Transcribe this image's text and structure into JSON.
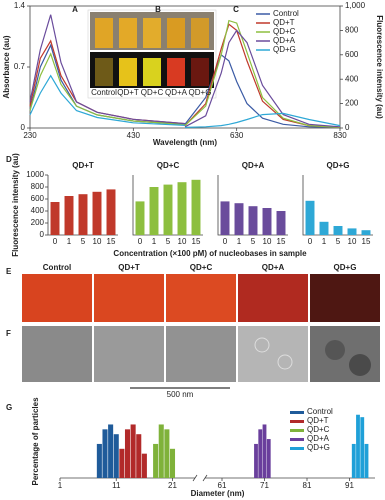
{
  "chart_data": [
    {
      "type": "line",
      "annotations": [
        "A",
        "B",
        "C"
      ],
      "xlabel": "Wavelength (nm)",
      "ylabel": "Absorbance (au)",
      "y2label": "Fluorescence intensity (au)",
      "xlim": [
        230,
        830
      ],
      "xticks": [
        230,
        430,
        630,
        830
      ],
      "ylim": [
        0,
        1.4
      ],
      "yticks": [
        0,
        0.7,
        1.4
      ],
      "y2lim": [
        0,
        1000
      ],
      "y2ticks": [
        0,
        200,
        400,
        600,
        800,
        {
          "value": 1000,
          "label": "1,000"
        }
      ],
      "inset_labels": [
        "Control",
        "QD+T",
        "QD+C",
        "QD+A",
        "QD+G"
      ],
      "series": [
        {
          "name": "Control",
          "color": "#3b5ba5",
          "x": [
            230,
            250,
            270,
            290,
            320,
            360,
            430,
            530
          ],
          "values": [
            0.2,
            0.7,
            0.95,
            0.55,
            0.25,
            0.15,
            0.08,
            0.04
          ]
        },
        {
          "name": "QD+T",
          "color": "#c0392b",
          "x": [
            230,
            250,
            270,
            290,
            320,
            360,
            430,
            530
          ],
          "values": [
            0.25,
            0.8,
            1.0,
            0.6,
            0.3,
            0.18,
            0.1,
            0.05
          ]
        },
        {
          "name": "QD+C",
          "color": "#8dbf3f",
          "x": [
            230,
            250,
            270,
            290,
            320,
            360,
            430,
            530
          ],
          "values": [
            0.2,
            0.6,
            0.85,
            0.5,
            0.25,
            0.15,
            0.08,
            0.04
          ]
        },
        {
          "name": "QD+A",
          "color": "#6a4c9c",
          "x": [
            230,
            250,
            270,
            290,
            320,
            360,
            430,
            530
          ],
          "values": [
            0.3,
            0.9,
            1.3,
            0.75,
            0.3,
            0.18,
            0.1,
            0.05
          ]
        },
        {
          "name": "QD+G",
          "color": "#2ea8d6",
          "x": [
            230,
            250,
            270,
            290,
            320,
            360,
            430,
            530
          ],
          "values": [
            0.15,
            0.4,
            0.6,
            0.4,
            0.2,
            0.12,
            0.06,
            0.03
          ]
        },
        {
          "name": "Control",
          "color": "#3b5ba5",
          "axis": "y2",
          "x": [
            530,
            570,
            600,
            615,
            630,
            650,
            680,
            720,
            770,
            830
          ],
          "values": [
            30,
            250,
            600,
            550,
            380,
            200,
            80,
            30,
            10,
            5
          ]
        },
        {
          "name": "QD+T",
          "color": "#c0392b",
          "axis": "y2",
          "x": [
            530,
            570,
            600,
            615,
            630,
            650,
            680,
            720,
            770,
            830
          ],
          "values": [
            20,
            200,
            650,
            850,
            800,
            550,
            220,
            70,
            20,
            5
          ]
        },
        {
          "name": "QD+C",
          "color": "#8dbf3f",
          "axis": "y2",
          "x": [
            530,
            570,
            600,
            615,
            630,
            650,
            680,
            720,
            770,
            830
          ],
          "values": [
            20,
            180,
            600,
            880,
            860,
            620,
            250,
            80,
            20,
            5
          ]
        },
        {
          "name": "QD+A",
          "color": "#6a4c9c",
          "axis": "y2",
          "x": [
            530,
            570,
            600,
            615,
            630,
            650,
            680,
            720,
            770,
            830
          ],
          "values": [
            10,
            100,
            450,
            700,
            800,
            700,
            350,
            110,
            30,
            10
          ]
        },
        {
          "name": "QD+G",
          "color": "#2ea8d6",
          "axis": "y2",
          "x": [
            530,
            570,
            600,
            615,
            630,
            650,
            680,
            720,
            770,
            830
          ],
          "values": [
            5,
            10,
            20,
            30,
            45,
            70,
            110,
            120,
            70,
            20
          ]
        }
      ]
    },
    {
      "type": "bar",
      "panel": "D",
      "title": "QD+T",
      "ylabel": "Fluorescence intensity (au)",
      "xlabel": "Concentration (×100 pM) of nucleobases in sample",
      "categories": [
        "0",
        "1",
        "5",
        "10",
        "15"
      ],
      "values": [
        550,
        650,
        680,
        720,
        760
      ],
      "color": "#c0392b",
      "ylim": [
        0,
        1000
      ],
      "yticks": [
        0,
        200,
        400,
        600,
        800,
        1000
      ]
    },
    {
      "type": "bar",
      "title": "QD+C",
      "categories": [
        "0",
        "1",
        "5",
        "10",
        "15"
      ],
      "values": [
        560,
        800,
        840,
        880,
        920
      ],
      "color": "#8dbf3f",
      "ylim": [
        0,
        1000
      ]
    },
    {
      "type": "bar",
      "title": "QD+A",
      "categories": [
        "0",
        "1",
        "5",
        "10",
        "15"
      ],
      "values": [
        560,
        530,
        480,
        450,
        400
      ],
      "color": "#6a4c9c",
      "ylim": [
        0,
        1000
      ]
    },
    {
      "type": "bar",
      "title": "QD+G",
      "categories": [
        "0",
        "1",
        "5",
        "10",
        "15"
      ],
      "values": [
        570,
        220,
        150,
        110,
        80
      ],
      "color": "#2ea8d6",
      "ylim": [
        0,
        1000
      ]
    },
    {
      "type": "histogram",
      "panel": "G",
      "xlabel": "Diameter (nm)",
      "ylabel": "Percentage of particles",
      "xlim": [
        1,
        97
      ],
      "xbreak": [
        25,
        57
      ],
      "xticks": [
        1,
        11,
        21,
        61,
        71,
        81,
        91
      ],
      "ylim": [
        0,
        30
      ],
      "series": [
        {
          "name": "Control",
          "color": "#1f5b9a",
          "x": [
            8,
            9,
            10,
            11
          ],
          "values": [
            14,
            20,
            22,
            18
          ]
        },
        {
          "name": "QD+T",
          "color": "#b22a2a",
          "x": [
            12,
            13,
            14,
            15,
            16
          ],
          "values": [
            12,
            20,
            22,
            18,
            10
          ]
        },
        {
          "name": "QD+C",
          "color": "#7fb23a",
          "x": [
            18,
            19,
            20,
            21
          ],
          "values": [
            14,
            22,
            20,
            12
          ]
        },
        {
          "name": "QD+A",
          "color": "#6a3f9c",
          "x": [
            69,
            70,
            71,
            72
          ],
          "values": [
            14,
            20,
            22,
            16
          ]
        },
        {
          "name": "QD+G",
          "color": "#1fa0d8",
          "x": [
            92,
            93,
            94,
            95
          ],
          "values": [
            14,
            26,
            25,
            14
          ]
        }
      ]
    }
  ],
  "micrographs": {
    "E": {
      "label": "E",
      "titles": [
        "Control",
        "QD+T",
        "QD+C",
        "QD+A",
        "QD+G"
      ]
    },
    "F": {
      "label": "F",
      "scale_bar": "500 nm"
    }
  }
}
